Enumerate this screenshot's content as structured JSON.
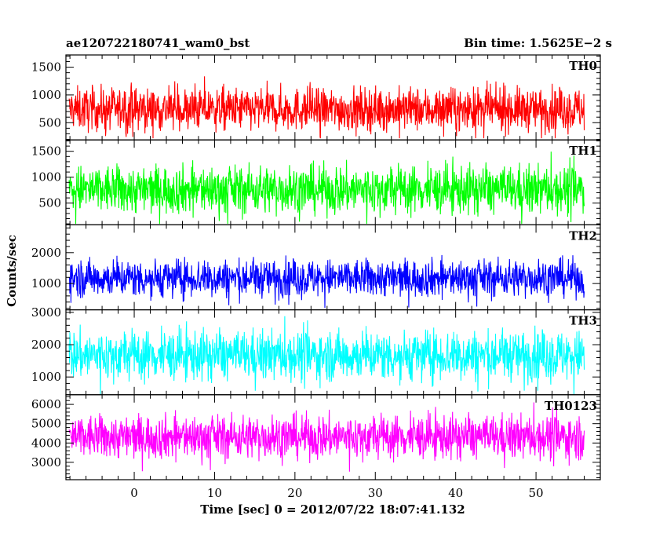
{
  "header": {
    "title": "ae120722180741_wam0_bst",
    "bin_time": "Bin time: 1.5625E−2 s"
  },
  "chart_data": {
    "type": "line",
    "xlabel": "Time [sec] 0 = 2012/07/22 18:07:41.132",
    "ylabel": "Counts/sec",
    "xlim": [
      -8.5,
      58
    ],
    "xticks": [
      0,
      10,
      20,
      30,
      40,
      50
    ],
    "x_minor_step": 2,
    "x_data_range": [
      -8.1,
      56.0
    ],
    "bin_time_sec": 0.015625,
    "grid": false,
    "panels": [
      {
        "name": "TH0",
        "color": "#ff0000",
        "ylim": [
          190,
          1720
        ],
        "yticks": [
          500,
          1000,
          1500
        ],
        "minor_step": 100,
        "mean": 740,
        "spread": 190,
        "clip_low": 220,
        "clip_high": 1720
      },
      {
        "name": "TH1",
        "color": "#00ff00",
        "ylim": [
          80,
          1720
        ],
        "yticks": [
          500,
          1000,
          1500
        ],
        "minor_step": 100,
        "mean": 760,
        "spread": 230,
        "clip_low": 100,
        "clip_high": 1720
      },
      {
        "name": "TH2",
        "color": "#0000ff",
        "ylim": [
          150,
          2900
        ],
        "yticks": [
          1000,
          2000
        ],
        "minor_step": 200,
        "mean": 1180,
        "spread": 300,
        "clip_low": 150,
        "clip_high": 2900
      },
      {
        "name": "TH3",
        "color": "#00ffff",
        "ylim": [
          450,
          3080
        ],
        "yticks": [
          1000,
          2000,
          3000
        ],
        "minor_step": 200,
        "mean": 1670,
        "spread": 380,
        "clip_low": 450,
        "clip_high": 3080
      },
      {
        "name": "TH0123",
        "color": "#ff00ff",
        "ylim": [
          2100,
          6500
        ],
        "yticks": [
          3000,
          4000,
          5000,
          6000
        ],
        "minor_step": 200,
        "mean": 4320,
        "spread": 560,
        "clip_low": 2100,
        "clip_high": 6500
      }
    ]
  }
}
